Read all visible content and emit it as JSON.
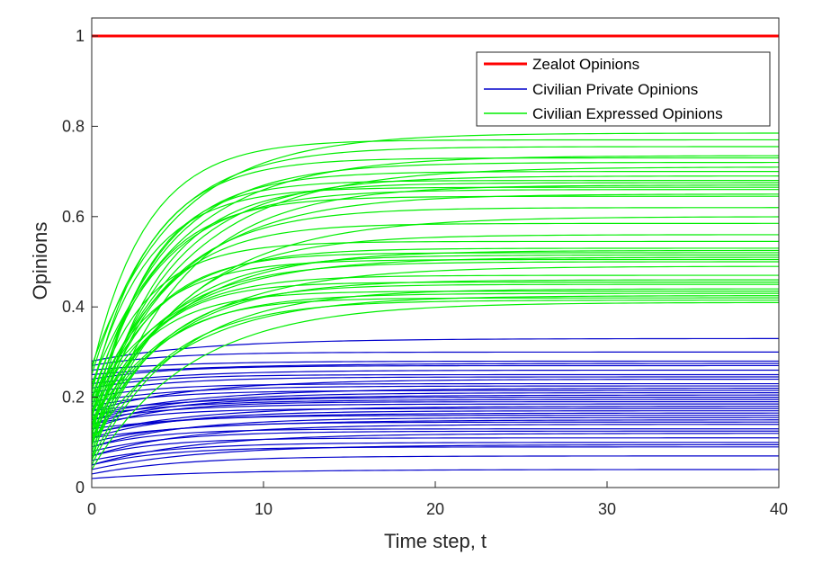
{
  "chart_data": {
    "type": "line",
    "xlabel": "Time step, t",
    "ylabel": "Opinions",
    "xlim": [
      0,
      40
    ],
    "ylim": [
      0,
      1
    ],
    "xticks": [
      "0",
      "10",
      "20",
      "30",
      "40"
    ],
    "yticks": [
      "0",
      "0.2",
      "0.4",
      "0.6",
      "0.8",
      "1"
    ],
    "grid": false,
    "legend_position": "top-right",
    "legend": [
      {
        "label": "Zealot Opinions",
        "color": "#ff0000"
      },
      {
        "label": "Civilian Private Opinions",
        "color": "#0000cc"
      },
      {
        "label": "Civilian Expressed Opinions",
        "color": "#00ee00"
      }
    ],
    "series": [
      {
        "name": "Zealot Opinions",
        "color": "#ff0000",
        "kind": "constant",
        "value": 1.0
      },
      {
        "name": "Civilian Private Opinions",
        "color": "#0000cc",
        "kind": "saturating",
        "rate": 0.2,
        "start": [
          0.02,
          0.03,
          0.05,
          0.04,
          0.06,
          0.07,
          0.05,
          0.08,
          0.09,
          0.07,
          0.1,
          0.11,
          0.09,
          0.12,
          0.13,
          0.11,
          0.14,
          0.12,
          0.15,
          0.13,
          0.16,
          0.14,
          0.17,
          0.15,
          0.18,
          0.16,
          0.19,
          0.2,
          0.17,
          0.21,
          0.22,
          0.23,
          0.24,
          0.25,
          0.26,
          0.27,
          0.28
        ],
        "end": [
          0.04,
          0.07,
          0.09,
          0.095,
          0.1,
          0.11,
          0.12,
          0.125,
          0.13,
          0.14,
          0.145,
          0.15,
          0.155,
          0.16,
          0.165,
          0.17,
          0.175,
          0.18,
          0.185,
          0.19,
          0.195,
          0.2,
          0.205,
          0.21,
          0.215,
          0.22,
          0.225,
          0.23,
          0.24,
          0.245,
          0.25,
          0.26,
          0.27,
          0.275,
          0.28,
          0.3,
          0.33
        ]
      },
      {
        "name": "Civilian Expressed Opinions",
        "color": "#00ee00",
        "kind": "saturating",
        "rate": 0.25,
        "start": [
          0.04,
          0.06,
          0.08,
          0.1,
          0.12,
          0.14,
          0.05,
          0.07,
          0.09,
          0.11,
          0.13,
          0.15,
          0.16,
          0.18,
          0.2,
          0.1,
          0.12,
          0.14,
          0.16,
          0.18,
          0.08,
          0.1,
          0.12,
          0.14,
          0.16,
          0.18,
          0.2,
          0.22,
          0.06,
          0.09,
          0.11,
          0.13,
          0.15,
          0.17,
          0.19,
          0.21,
          0.23,
          0.25,
          0.26,
          0.27
        ],
        "end": [
          0.41,
          0.415,
          0.42,
          0.425,
          0.43,
          0.435,
          0.44,
          0.45,
          0.455,
          0.46,
          0.47,
          0.49,
          0.5,
          0.505,
          0.51,
          0.515,
          0.52,
          0.525,
          0.53,
          0.545,
          0.56,
          0.585,
          0.6,
          0.62,
          0.645,
          0.65,
          0.66,
          0.665,
          0.67,
          0.675,
          0.68,
          0.69,
          0.7,
          0.71,
          0.72,
          0.73,
          0.735,
          0.755,
          0.77,
          0.785
        ]
      }
    ]
  }
}
